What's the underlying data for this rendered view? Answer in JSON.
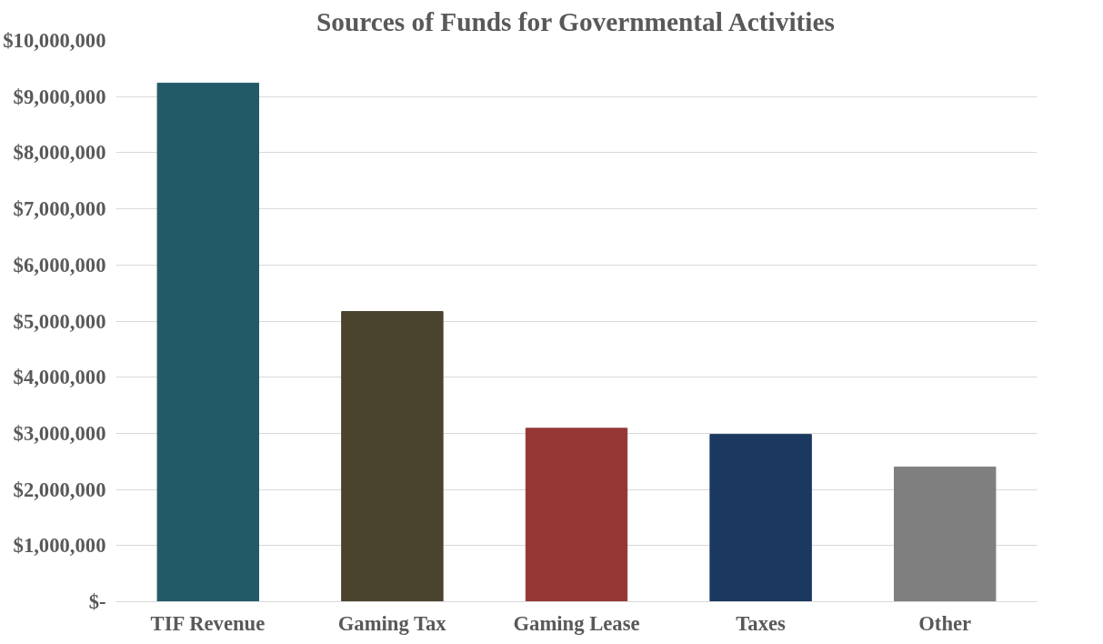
{
  "chart_data": {
    "type": "bar",
    "title": "Sources of Funds for Governmental Activities",
    "categories": [
      "TIF Revenue",
      "Gaming Tax",
      "Gaming Lease",
      "Taxes",
      "Other"
    ],
    "values": [
      9240000,
      5170000,
      3090000,
      2980000,
      2400000
    ],
    "colors": [
      "#235a68",
      "#4a432d",
      "#953735",
      "#1b3860",
      "#7f7f7f"
    ],
    "ylim": [
      0,
      10000000
    ],
    "yticks": [
      {
        "value": 0,
        "label": "$-"
      },
      {
        "value": 1000000,
        "label": "$1,000,000"
      },
      {
        "value": 2000000,
        "label": "$2,000,000"
      },
      {
        "value": 3000000,
        "label": "$3,000,000"
      },
      {
        "value": 4000000,
        "label": "$4,000,000"
      },
      {
        "value": 5000000,
        "label": "$5,000,000"
      },
      {
        "value": 6000000,
        "label": "$6,000,000"
      },
      {
        "value": 7000000,
        "label": "$7,000,000"
      },
      {
        "value": 8000000,
        "label": "$8,000,000"
      },
      {
        "value": 9000000,
        "label": "$9,000,000"
      },
      {
        "value": 10000000,
        "label": "$10,000,000"
      }
    ],
    "grid": "y"
  }
}
